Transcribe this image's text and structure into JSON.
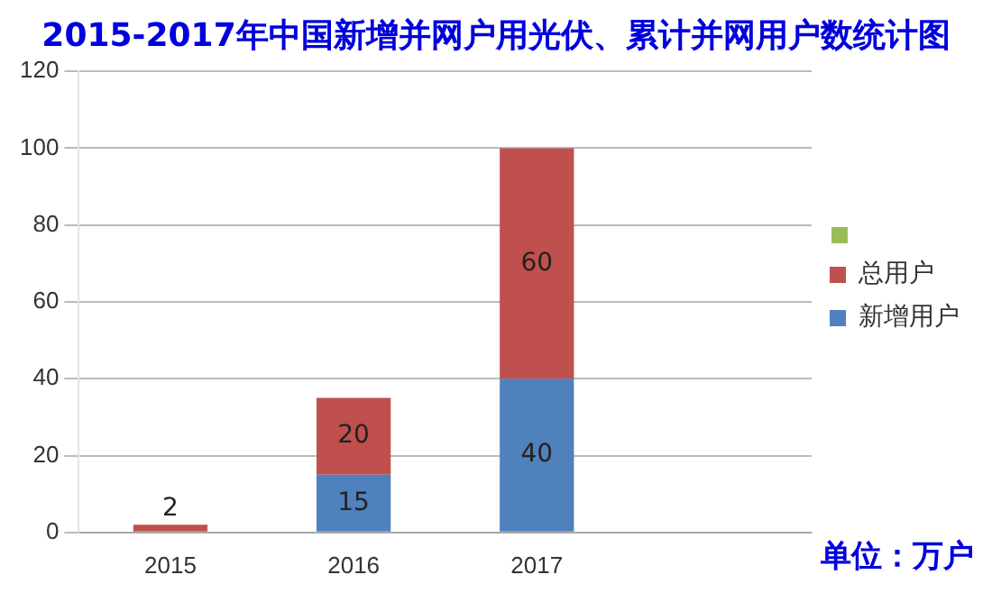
{
  "chart_data": {
    "type": "bar",
    "stacked": true,
    "title": "2015-2017年中国新增并网户用光伏、累计并网用户数统计图",
    "categories": [
      "2015",
      "2016",
      "2017",
      null
    ],
    "series": [
      {
        "name": "新增用户",
        "color": "#4f81bd",
        "values": [
          null,
          15,
          40,
          null
        ]
      },
      {
        "name": "总用户",
        "color": "#c0504d",
        "values": [
          2,
          20,
          60,
          null
        ]
      }
    ],
    "ylim": [
      0,
      120
    ],
    "yticks": [
      0,
      20,
      40,
      60,
      80,
      100,
      120
    ],
    "grid": "y",
    "legend": "right",
    "data_labels": true,
    "annotations": [
      "单位：万户"
    ]
  }
}
